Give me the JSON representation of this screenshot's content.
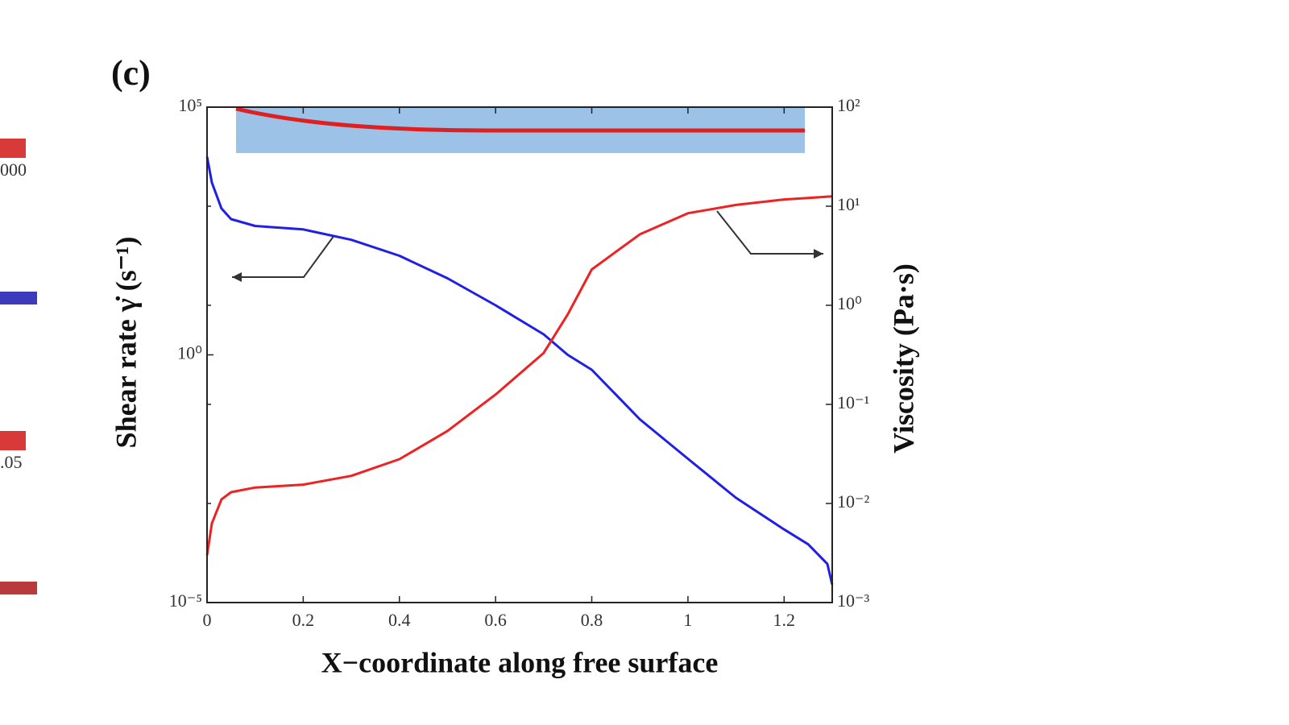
{
  "chart_data": {
    "type": "line",
    "panel_label": "(c)",
    "xlabel": "X−coordinate along free surface",
    "ylabel": "Shear rate γ̇ (s⁻¹)",
    "y2label": "Viscosity (Pa·s)",
    "fragments": [
      "000",
      ".05"
    ],
    "x": [
      0,
      0.01,
      0.03,
      0.05,
      0.1,
      0.2,
      0.3,
      0.4,
      0.5,
      0.6,
      0.7,
      0.75,
      0.8,
      0.9,
      1.0,
      1.1,
      1.2,
      1.25,
      1.29,
      1.3
    ],
    "series": [
      {
        "color": "#1f1fe6",
        "axis": "y",
        "values": [
          10000,
          3000,
          900,
          550,
          400,
          340,
          210,
          100,
          35,
          10,
          2.6,
          1.0,
          0.5,
          0.05,
          0.008,
          0.0013,
          0.0003,
          0.00015,
          6e-05,
          2.3e-05
        ]
      },
      {
        "color": "#ee2222",
        "axis": "y2",
        "values": [
          0.003,
          0.0063,
          0.011,
          0.013,
          0.0145,
          0.0155,
          0.019,
          0.028,
          0.054,
          0.126,
          0.33,
          0.81,
          2.3,
          5.2,
          8.5,
          10.3,
          11.7,
          12.1,
          12.5,
          12.6
        ]
      }
    ],
    "xlim": [
      0,
      1.3
    ],
    "xticks": [
      0,
      0.2,
      0.4,
      0.6,
      0.8,
      1,
      1.2
    ],
    "ylim": [
      1e-05,
      100000
    ],
    "ylog": true,
    "yticks": [
      {
        "value": 1e-05,
        "label": "10⁻⁵"
      },
      {
        "value": 1,
        "label": "10⁰"
      },
      {
        "value": 100000,
        "label": "10⁵"
      }
    ],
    "y2lim": [
      0.001,
      100
    ],
    "y2log": true,
    "y2ticks": [
      {
        "value": 0.001,
        "label": "10⁻³"
      },
      {
        "value": 0.01,
        "label": "10⁻²"
      },
      {
        "value": 0.1,
        "label": "10⁻¹"
      },
      {
        "value": 1,
        "label": "10⁰"
      },
      {
        "value": 10,
        "label": "10¹"
      },
      {
        "value": 100,
        "label": "10²"
      }
    ],
    "grid": false
  }
}
